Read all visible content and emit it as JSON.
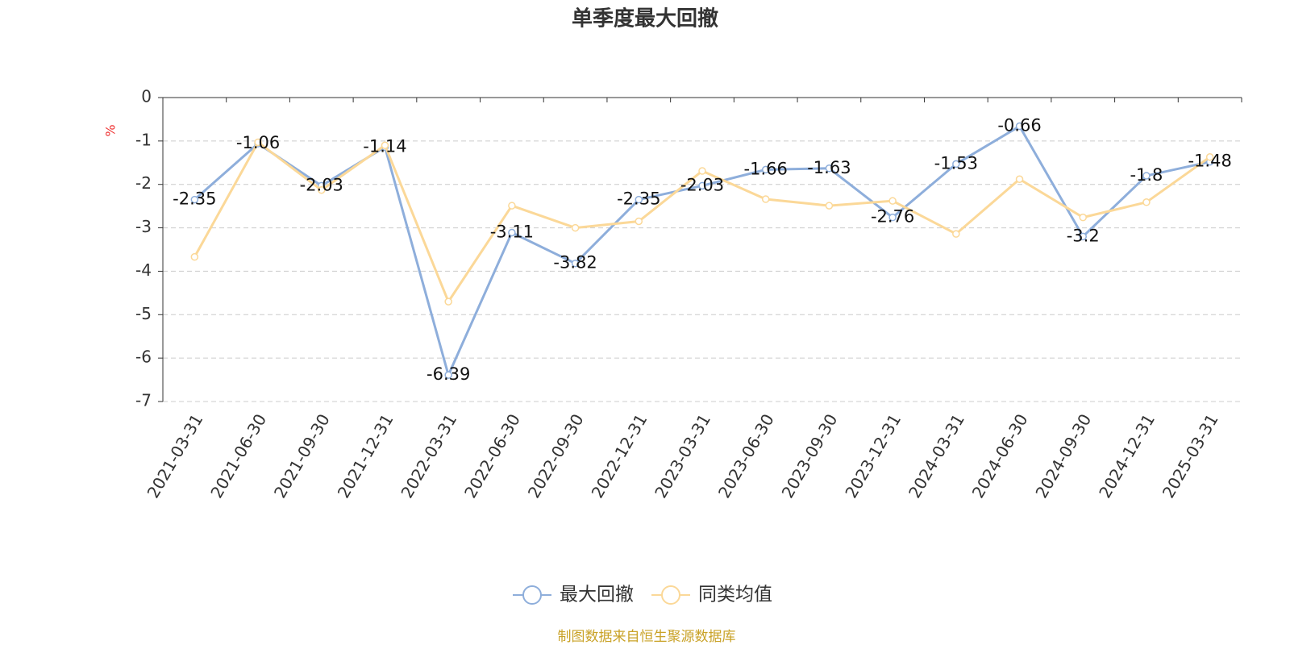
{
  "chart_data": {
    "type": "line",
    "title": "单季度最大回撤",
    "y_unit": "%",
    "categories": [
      "2021-03-31",
      "2021-06-30",
      "2021-09-30",
      "2021-12-31",
      "2022-03-31",
      "2022-06-30",
      "2022-09-30",
      "2022-12-31",
      "2023-03-31",
      "2023-06-30",
      "2023-09-30",
      "2023-12-31",
      "2024-03-31",
      "2024-06-30",
      "2024-09-30",
      "2024-12-31",
      "2025-03-31"
    ],
    "series": [
      {
        "name": "最大回撤",
        "color": "#8eaedb",
        "values": [
          -2.35,
          -1.06,
          -2.03,
          -1.14,
          -6.39,
          -3.11,
          -3.82,
          -2.35,
          -2.03,
          -1.66,
          -1.63,
          -2.76,
          -1.53,
          -0.66,
          -3.2,
          -1.8,
          -1.48
        ]
      },
      {
        "name": "同类均值",
        "color": "#fbd898",
        "values": [
          -3.67,
          -1.03,
          -2.13,
          -1.1,
          -4.7,
          -2.49,
          -3.0,
          -2.85,
          -1.69,
          -2.34,
          -2.49,
          -2.38,
          -3.14,
          -1.88,
          -2.76,
          -2.41,
          -1.37
        ]
      }
    ],
    "ylim": [
      -7,
      0
    ],
    "yticks": [
      0,
      -1,
      -2,
      -3,
      -4,
      -5,
      -6,
      -7
    ],
    "grid": true,
    "source": "制图数据来自恒生聚源数据库"
  }
}
